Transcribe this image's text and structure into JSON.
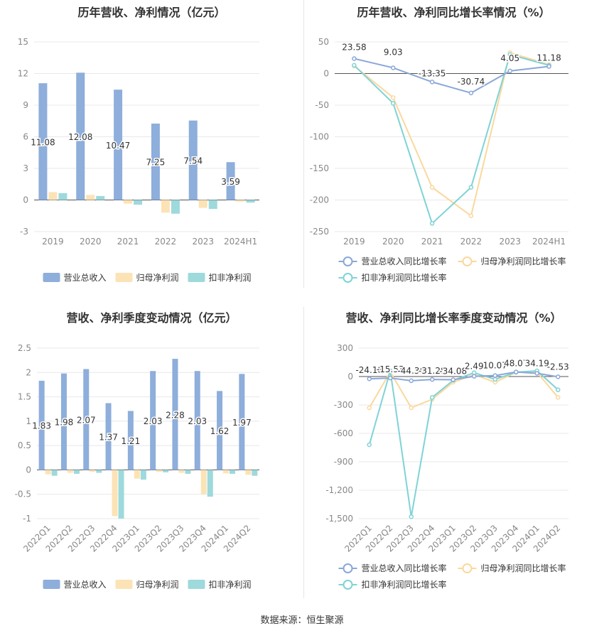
{
  "footer": "数据来源：恒生聚源",
  "colors": {
    "revenue": "#8eaedb",
    "net_profit": "#fce3b6",
    "deducted_profit": "#9ed9dc",
    "revenue_line": "#8aa7d8",
    "net_line": "#fad89d",
    "deducted_line": "#7fd3d6"
  },
  "chart_data": [
    {
      "type": "bar",
      "title": "历年营收、净利情况（亿元）",
      "categories": [
        "2019",
        "2020",
        "2021",
        "2022",
        "2023",
        "2024H1"
      ],
      "yticks": [
        "15",
        "12",
        "9",
        "6",
        "3",
        "0",
        "-3"
      ],
      "ylim": [
        -3,
        15
      ],
      "series": [
        {
          "name": "营业总收入",
          "values": [
            11.08,
            12.08,
            10.47,
            7.25,
            7.54,
            3.59
          ],
          "labels": [
            "11.08",
            "12.08",
            "10.47",
            "7.25",
            "7.54",
            "3.59"
          ]
        },
        {
          "name": "归母净利润",
          "values": [
            0.75,
            0.48,
            -0.35,
            -1.2,
            -0.75,
            -0.15
          ]
        },
        {
          "name": "扣非净利润",
          "values": [
            0.65,
            0.38,
            -0.45,
            -1.3,
            -0.85,
            -0.25
          ]
        }
      ],
      "legend": "bottom"
    },
    {
      "type": "line",
      "title": "历年营收、净利同比增长率情况（%）",
      "categories": [
        "2019",
        "2020",
        "2021",
        "2022",
        "2023",
        "2024H1"
      ],
      "yticks": [
        "50",
        "0",
        "-50",
        "-100",
        "-150",
        "-200",
        "-250"
      ],
      "ylim": [
        -250,
        50
      ],
      "series": [
        {
          "name": "营业总收入同比增长率",
          "values": [
            23.58,
            9.03,
            -13.35,
            -30.74,
            4.05,
            11.18
          ],
          "labels": [
            "23.58",
            "9.03",
            "-13.35",
            "-30.74",
            "4.05",
            "11.18"
          ]
        },
        {
          "name": "归母净利润同比增长率",
          "values": [
            12,
            -38,
            -180,
            -225,
            33,
            14
          ]
        },
        {
          "name": "扣非净利润同比增长率",
          "values": [
            13,
            -47,
            -237,
            -180,
            30,
            13
          ]
        }
      ],
      "legend": "bottom"
    },
    {
      "type": "bar",
      "title": "营收、净利季度变动情况（亿元）",
      "categories": [
        "2022Q1",
        "2022Q2",
        "2022Q3",
        "2022Q4",
        "2023Q1",
        "2023Q2",
        "2023Q3",
        "2023Q4",
        "2024Q1",
        "2024Q2"
      ],
      "yticks": [
        "2.5",
        "2",
        "1.5",
        "1",
        "0.5",
        "0",
        "-0.5",
        "-1"
      ],
      "ylim": [
        -1,
        2.5
      ],
      "series": [
        {
          "name": "营业总收入",
          "values": [
            1.83,
            1.98,
            2.07,
            1.37,
            1.21,
            2.03,
            2.28,
            2.03,
            1.62,
            1.97
          ],
          "labels": [
            "1.83",
            "1.98",
            "2.07",
            "1.37",
            "1.21",
            "2.03",
            "2.28",
            "2.03",
            "1.62",
            "1.97"
          ]
        },
        {
          "name": "归母净利润",
          "values": [
            -0.09,
            -0.06,
            -0.04,
            -0.95,
            -0.18,
            -0.04,
            -0.06,
            -0.5,
            -0.07,
            -0.1
          ]
        },
        {
          "name": "扣非净利润",
          "values": [
            -0.12,
            -0.08,
            -0.06,
            -1.0,
            -0.2,
            -0.05,
            -0.08,
            -0.55,
            -0.08,
            -0.12
          ]
        }
      ],
      "legend": "bottom"
    },
    {
      "type": "line",
      "title": "营收、净利同比增长率季度变动情况（%）",
      "categories": [
        "2022Q1",
        "2022Q2",
        "2022Q3",
        "2022Q4",
        "2023Q1",
        "2023Q2",
        "2023Q3",
        "2023Q4",
        "2024Q1",
        "2024Q2"
      ],
      "yticks": [
        "300",
        "0",
        "-300",
        "-600",
        "-900",
        "-1,200",
        "-1,500"
      ],
      "ylim": [
        -1500,
        300
      ],
      "series": [
        {
          "name": "营业总收入同比增长率",
          "values": [
            -24.18,
            -15.53,
            -44.36,
            -31.28,
            -34.08,
            2.49,
            10.07,
            48.07,
            34.19,
            -2.53
          ],
          "labels": [
            "-24.18",
            "-15.53",
            "-44.36",
            "-31.28",
            "-34.08",
            "2.49",
            "10.07",
            "48.07",
            "34.19",
            "-2.53"
          ]
        },
        {
          "name": "归母净利润同比增长率",
          "values": [
            -330,
            50,
            -330,
            -240,
            -60,
            20,
            -60,
            45,
            45,
            -220
          ]
        },
        {
          "name": "扣非净利润同比增长率",
          "values": [
            -720,
            60,
            -1480,
            -220,
            -40,
            40,
            -30,
            45,
            60,
            -140
          ]
        }
      ],
      "legend": "bottom"
    }
  ]
}
